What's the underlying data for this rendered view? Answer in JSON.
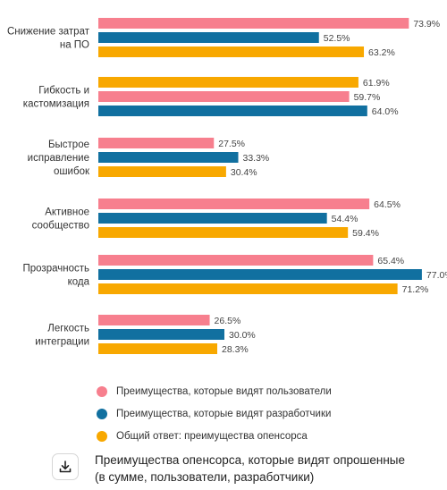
{
  "colors": {
    "users": "#F77F8E",
    "developers": "#1170A0",
    "overall": "#F8A800"
  },
  "chart_data": {
    "type": "bar",
    "orientation": "horizontal",
    "categories": [
      [
        "Снижение затрат",
        "на ПО"
      ],
      [
        "Гибкость и",
        "кастомизация"
      ],
      [
        "Быстрое",
        "исправление",
        "ошибок"
      ],
      [
        "Активное",
        "сообщество"
      ],
      [
        "Прозрачность",
        "кода"
      ],
      [
        "Легкость",
        "интеграции"
      ]
    ],
    "series_order": [
      [
        "users",
        "developers",
        "overall"
      ],
      [
        "overall",
        "users",
        "developers"
      ],
      [
        "users",
        "developers",
        "overall"
      ],
      [
        "users",
        "developers",
        "overall"
      ],
      [
        "users",
        "developers",
        "overall"
      ],
      [
        "users",
        "developers",
        "overall"
      ]
    ],
    "series": [
      {
        "key": "users",
        "name": "Преимущества, которые видят пользователи",
        "values": [
          73.9,
          59.7,
          27.5,
          64.5,
          65.4,
          26.5
        ]
      },
      {
        "key": "developers",
        "name": "Преимущества, которые видят разработчики",
        "values": [
          52.5,
          64.0,
          33.3,
          54.4,
          77.0,
          30.0
        ]
      },
      {
        "key": "overall",
        "name": "Общий ответ: преимущества опенсорса",
        "values": [
          63.2,
          61.9,
          30.4,
          59.4,
          71.2,
          28.3
        ]
      }
    ],
    "xlim": [
      0,
      100
    ],
    "value_suffix": "%",
    "legend_position": "bottom"
  },
  "legend": [
    {
      "label": "Преимущества, которые видят пользователи",
      "color": "#F77F8E"
    },
    {
      "label": "Преимущества, которые видят разработчики",
      "color": "#1170A0"
    },
    {
      "label": "Общий ответ: преимущества опенсорса",
      "color": "#F8A800"
    }
  ],
  "footer": {
    "download_icon": "download-icon",
    "caption_line1": "Преимущества опенсорса, которые видят опрошенные",
    "caption_line2": "(в сумме, пользователи, разработчики)"
  }
}
